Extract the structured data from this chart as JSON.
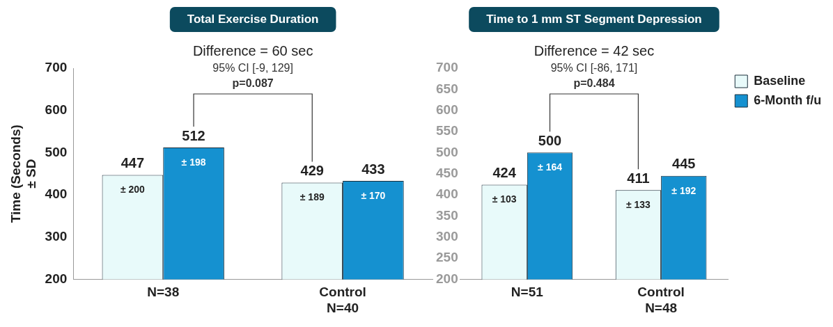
{
  "chart_data": [
    {
      "type": "bar",
      "title": "Total Exercise Duration",
      "subtitle": "Difference = 60 sec",
      "ylabel": "Time (Seconds)\n± SD",
      "categories": [
        "N=38",
        "Control\nN=40"
      ],
      "series": [
        {
          "color": "#e8fafa",
          "values": [
            447,
            429
          ]
        },
        {
          "color": "#1591d0",
          "values": [
            512,
            433
          ]
        }
      ],
      "annotations": [
        "95% CI [-9, 129]",
        "p=0.087",
        "± 200",
        "± 189",
        "± 198",
        "± 170"
      ],
      "ylim": [
        200,
        700
      ],
      "yticks": [
        200,
        300,
        400,
        500,
        600,
        700
      ],
      "grid": false,
      "legend": false,
      "data_labels": true
    },
    {
      "type": "bar",
      "title": "Time to 1 mm ST Segment Depression",
      "subtitle": "Difference = 42 sec",
      "categories": [
        "N=51",
        "Control\nN=48"
      ],
      "series": [
        {
          "name": "Baseline",
          "color": "#e8fafa",
          "values": [
            424,
            411
          ]
        },
        {
          "name": "6-Month f/u",
          "color": "#1591d0",
          "values": [
            500,
            445
          ]
        }
      ],
      "annotations": [
        "95% CI [-86, 171]",
        "p=0.484",
        "± 103",
        "± 133",
        "± 164",
        "± 192"
      ],
      "ylim": [
        200,
        700
      ],
      "yticks": [
        200,
        250,
        300,
        350,
        400,
        450,
        500,
        550,
        600,
        650,
        700
      ],
      "grid": false,
      "legend": "top right",
      "data_labels": true
    }
  ]
}
